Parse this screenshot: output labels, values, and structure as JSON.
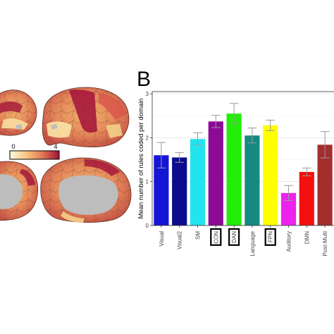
{
  "panel_b_letter": "B",
  "colorbar": {
    "min_label": "0",
    "max_label": "4"
  },
  "colors": {
    "brain_low": "#fff1c4",
    "brain_mid": "#e9935a",
    "brain_high": "#a3123a",
    "medial_wall": "#bdbdbd"
  },
  "chart_data": {
    "type": "bar",
    "ylabel": "Mean number of rules coded per domain",
    "xlabel": "",
    "ylim": [
      0,
      3.05
    ],
    "yticks": [
      0,
      1,
      2,
      3
    ],
    "categories": [
      "Visual",
      "Visual2",
      "SM",
      "CON",
      "DAN",
      "Language",
      "FPN",
      "Auditory",
      "DMN",
      "Post-Multi"
    ],
    "boxed_categories": [
      "CON",
      "DAN",
      "FPN"
    ],
    "values": [
      1.6,
      1.55,
      1.97,
      2.37,
      2.55,
      2.05,
      2.28,
      0.74,
      1.22,
      1.84
    ],
    "errors": [
      0.29,
      0.11,
      0.14,
      0.14,
      0.23,
      0.17,
      0.12,
      0.17,
      0.09,
      0.3
    ],
    "colors": [
      "#1515d8",
      "#0c0c8c",
      "#22e4ee",
      "#8c0a96",
      "#22ee0a",
      "#148a80",
      "#ffff00",
      "#ee22ee",
      "#f51010",
      "#a32e2e"
    ],
    "grid": true,
    "legend": "none"
  }
}
